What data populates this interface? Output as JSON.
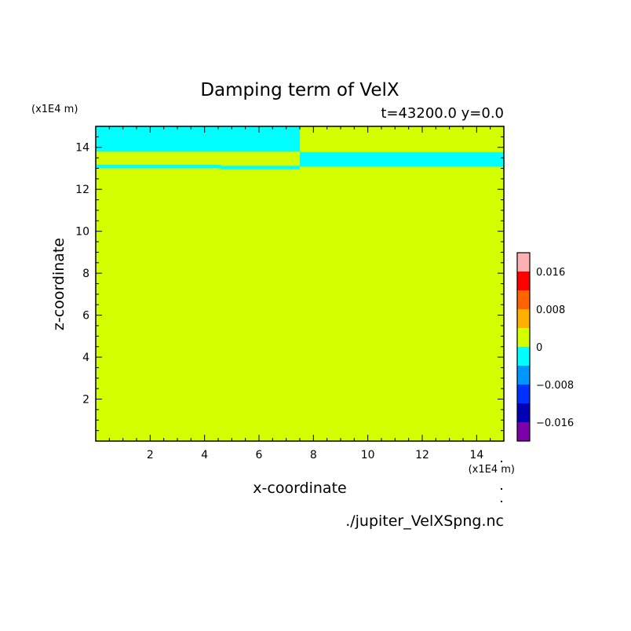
{
  "chart_data": {
    "type": "heatmap",
    "title": "Damping term of VelX",
    "subtitle": "t=43200.0 y=0.0",
    "xlabel": "x-coordinate",
    "ylabel": "z-coordinate",
    "x_scale_note": "(x1E4 m)",
    "y_scale_note": "(x1E4 m)",
    "source_file": "./jupiter_VelXSpng.nc",
    "xlim": [
      0,
      15
    ],
    "ylim": [
      0,
      15
    ],
    "x_ticks": [
      2,
      4,
      6,
      8,
      10,
      12,
      14
    ],
    "y_ticks": [
      2,
      4,
      6,
      8,
      10,
      12,
      14
    ],
    "background_level_color": "#d4ff00",
    "regions": [
      {
        "x": [
          0,
          7.5
        ],
        "z": [
          13.8,
          15
        ],
        "color": "#00ffff",
        "range": "-0.004..0"
      },
      {
        "x": [
          0,
          4.6
        ],
        "z": [
          13.0,
          13.17
        ],
        "color": "#00ffff",
        "range": "-0.004..0"
      },
      {
        "x": [
          4.6,
          7.5
        ],
        "z": [
          12.95,
          13.12
        ],
        "color": "#00ffff",
        "range": "-0.004..0"
      },
      {
        "x": [
          7.5,
          15
        ],
        "z": [
          13.08,
          13.77
        ],
        "color": "#00ffff",
        "range": "-0.004..0"
      }
    ],
    "colorbar": {
      "levels": [
        {
          "from": -0.02,
          "to": -0.016,
          "color": "#7b00a8"
        },
        {
          "from": -0.016,
          "to": -0.012,
          "color": "#0000b4"
        },
        {
          "from": -0.012,
          "to": -0.008,
          "color": "#0032ff"
        },
        {
          "from": -0.008,
          "to": -0.004,
          "color": "#0096ff"
        },
        {
          "from": -0.004,
          "to": 0,
          "color": "#00ffff"
        },
        {
          "from": 0,
          "to": 0.004,
          "color": "#d4ff00"
        },
        {
          "from": 0.004,
          "to": 0.008,
          "color": "#ffb000"
        },
        {
          "from": 0.008,
          "to": 0.012,
          "color": "#ff6400"
        },
        {
          "from": 0.012,
          "to": 0.016,
          "color": "#ff0000"
        },
        {
          "from": 0.016,
          "to": 0.02,
          "color": "#ffb0b0"
        }
      ],
      "tick_labels": [
        {
          "value": 0.016,
          "label": "0.016"
        },
        {
          "value": 0.008,
          "label": "0.008"
        },
        {
          "value": 0,
          "label": "0"
        },
        {
          "value": -0.008,
          "label": "−0.008"
        },
        {
          "value": -0.016,
          "label": "−0.016"
        }
      ]
    }
  }
}
